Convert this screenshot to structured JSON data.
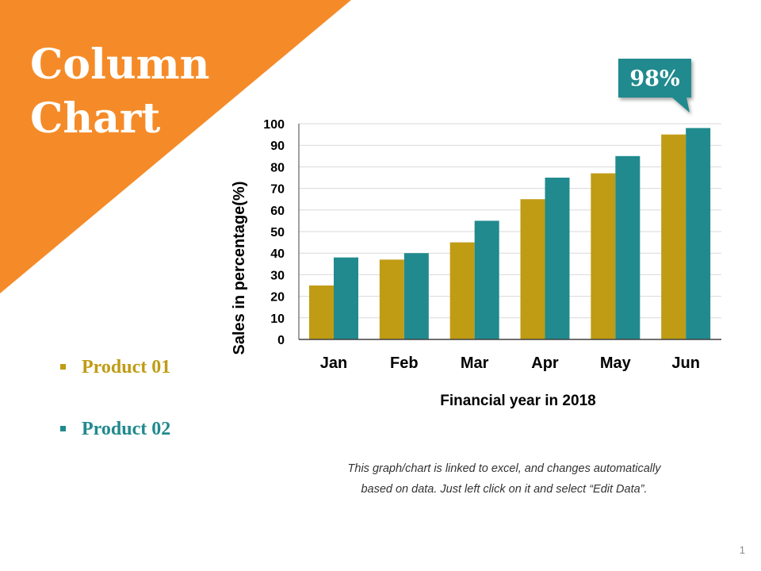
{
  "slide": {
    "title_lines": [
      "Column",
      "Chart"
    ],
    "caption_lines": [
      "This graph/chart is linked to excel, and changes automatically",
      "based on data. Just left click on it and select “Edit Data”."
    ],
    "page_number": "1",
    "accent_color": "#F58B28"
  },
  "legend": [
    {
      "label": "Product 01",
      "color": "#C09C14"
    },
    {
      "label": "Product 02",
      "color": "#208A8E"
    }
  ],
  "callout": {
    "text": "98%",
    "color": "#208A8E"
  },
  "chart_data": {
    "type": "bar",
    "categories": [
      "Jan",
      "Feb",
      "Mar",
      "Apr",
      "May",
      "Jun"
    ],
    "series": [
      {
        "name": "Product 01",
        "color": "#C09C14",
        "values": [
          25,
          37,
          45,
          65,
          77,
          95
        ]
      },
      {
        "name": "Product 02",
        "color": "#208A8E",
        "values": [
          38,
          40,
          55,
          75,
          85,
          98
        ]
      }
    ],
    "xlabel": "Financial year in 2018",
    "ylabel": "Sales in percentage(%)",
    "ylim": [
      0,
      100
    ],
    "yticks": [
      "0",
      "10",
      "20",
      "30",
      "40",
      "50",
      "60",
      "70",
      "80",
      "90",
      "100"
    ],
    "grid": true,
    "legend_position": "left"
  }
}
